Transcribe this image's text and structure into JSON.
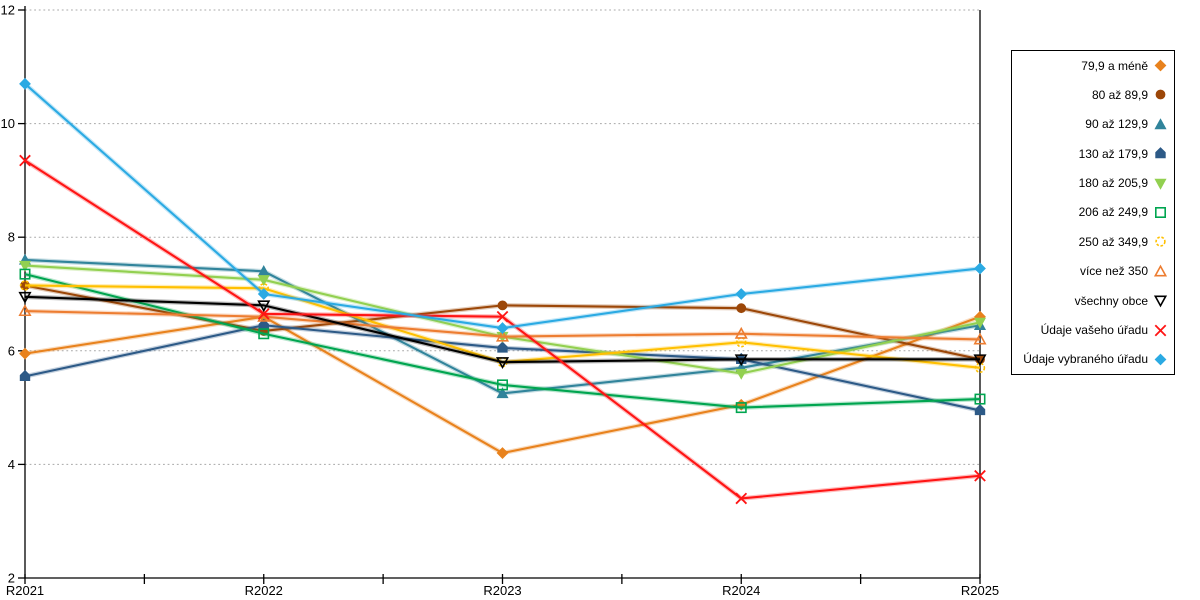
{
  "chart_data": {
    "type": "line",
    "title": "",
    "xlabel": "",
    "ylabel": "",
    "categories": [
      "R2021",
      "R2022",
      "R2023",
      "R2024",
      "R2025"
    ],
    "ylim": [
      2,
      12
    ],
    "ytick_step": 2,
    "y_ticks": [
      "2",
      "4",
      "6",
      "8",
      "10",
      "12"
    ],
    "grid": "horizontal-dotted",
    "legend_position": "right",
    "series": [
      {
        "name": "79,9 a méně",
        "marker": "diamond",
        "fill": "solid",
        "color": "#E8821D",
        "values": [
          5.95,
          6.6,
          4.2,
          5.05,
          6.6
        ]
      },
      {
        "name": "80 až 89,9",
        "marker": "circle",
        "fill": "solid",
        "color": "#9C4708",
        "values": [
          7.15,
          6.35,
          6.8,
          6.75,
          5.85
        ]
      },
      {
        "name": "90 až 129,9",
        "marker": "triangle-up",
        "fill": "solid",
        "color": "#31849B",
        "values": [
          7.6,
          7.4,
          5.25,
          5.7,
          6.45
        ]
      },
      {
        "name": "130 až 179,9",
        "marker": "pentagon",
        "fill": "solid",
        "color": "#2D5A87",
        "values": [
          5.55,
          6.45,
          6.05,
          5.85,
          4.95
        ]
      },
      {
        "name": "180 až 205,9",
        "marker": "triangle-down",
        "fill": "solid",
        "color": "#92D050",
        "values": [
          7.5,
          7.25,
          6.25,
          5.6,
          6.5
        ]
      },
      {
        "name": "206 až 249,9",
        "marker": "square",
        "fill": "open",
        "color": "#00A550",
        "values": [
          7.35,
          6.3,
          5.4,
          5.0,
          5.15
        ]
      },
      {
        "name": "250 až 349,9",
        "marker": "circle",
        "fill": "open",
        "color": "#FFC000",
        "values": [
          7.15,
          7.1,
          5.8,
          6.15,
          5.7
        ]
      },
      {
        "name": "více než 350",
        "marker": "triangle-up",
        "fill": "open",
        "color": "#ED7D31",
        "values": [
          6.7,
          6.6,
          6.25,
          6.3,
          6.2
        ]
      },
      {
        "name": "všechny obce",
        "marker": "triangle-down",
        "fill": "open",
        "color": "#000000",
        "values": [
          6.95,
          6.8,
          5.8,
          5.85,
          5.85
        ]
      },
      {
        "name": "Údaje vašeho úřadu",
        "marker": "x",
        "fill": "open",
        "color": "#FF1414",
        "values": [
          9.35,
          6.65,
          6.6,
          3.4,
          3.8
        ]
      },
      {
        "name": "Údaje vybraného úřadu",
        "marker": "diamond",
        "fill": "solid",
        "color": "#2BAAE3",
        "values": [
          10.7,
          7.0,
          6.4,
          7.0,
          7.45
        ]
      }
    ]
  },
  "colors": {
    "background": "#FFFFFF",
    "axis": "#000000",
    "grid": "#A8A8A8",
    "label": "#000000"
  }
}
